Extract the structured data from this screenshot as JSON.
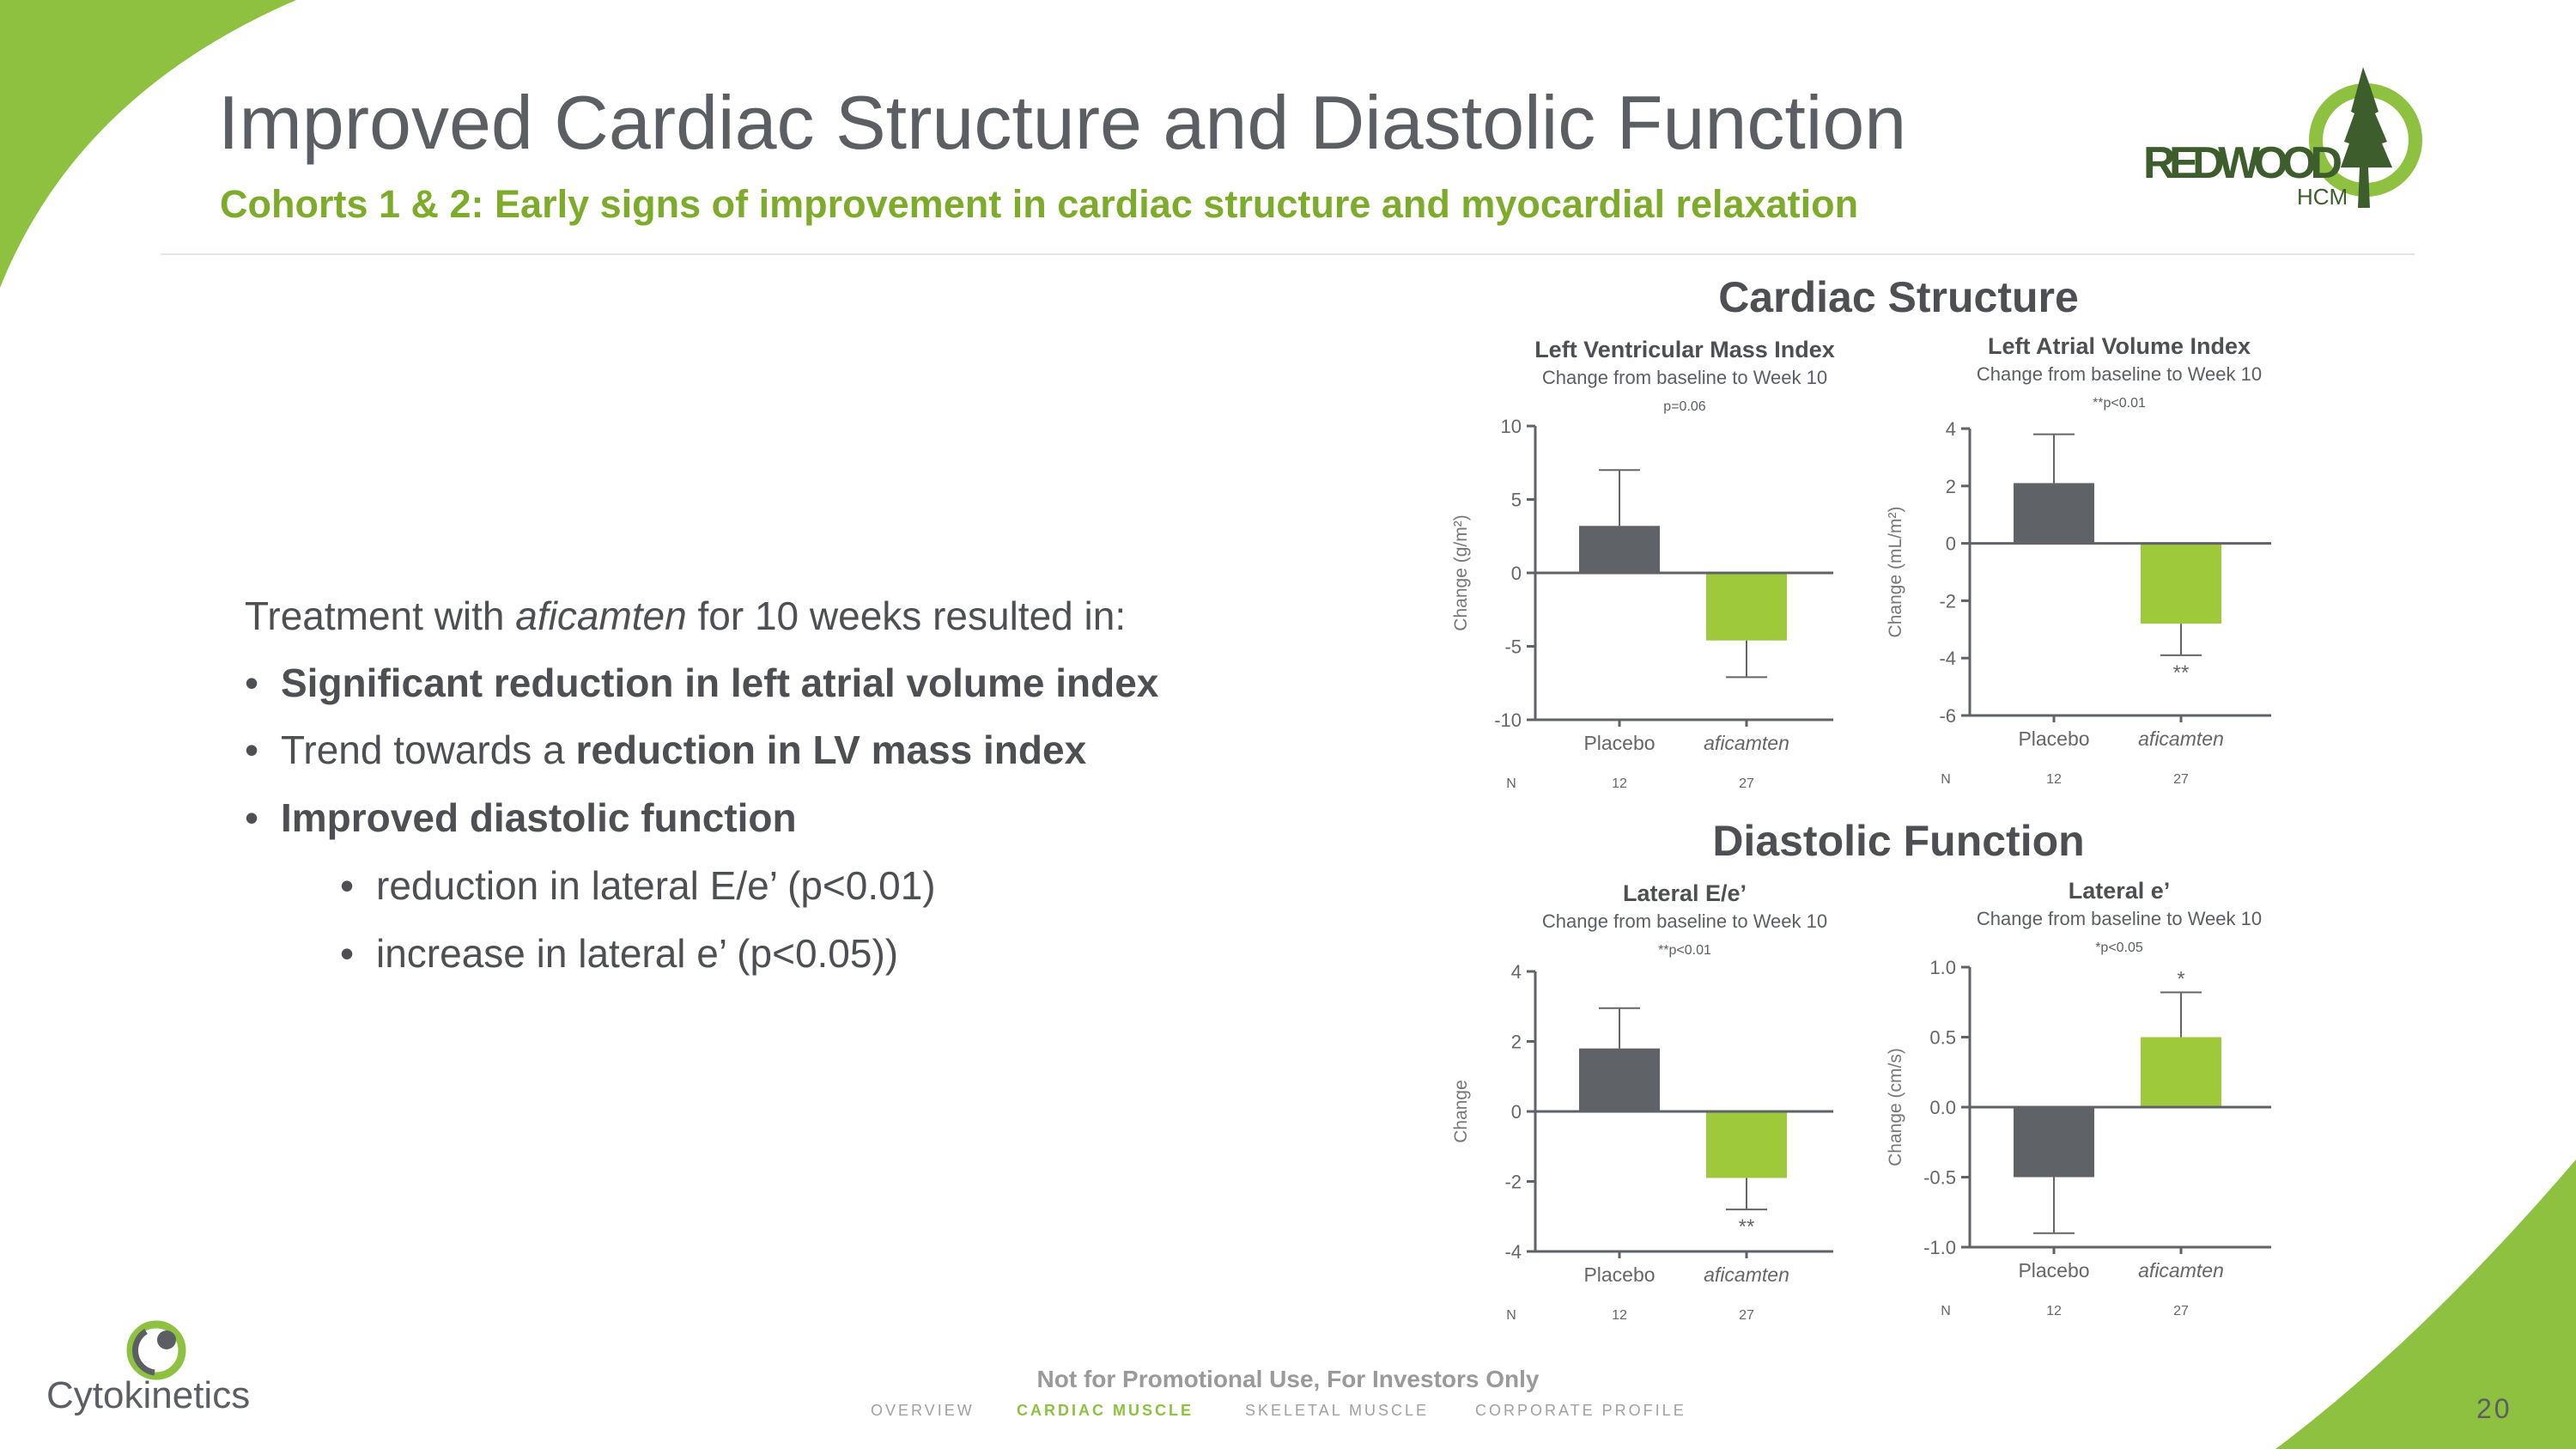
{
  "header": {
    "title": "Improved Cardiac Structure and Diastolic Function",
    "subtitle": "Cohorts 1 & 2: Early signs of improvement in cardiac structure and myocardial relaxation"
  },
  "logos": {
    "redwood": {
      "word": "REDWOOD",
      "sub": "HCM"
    },
    "cytokinetics": "Cytokinetics"
  },
  "body": {
    "intro_pre": "Treatment with ",
    "intro_drug": "aficamten",
    "intro_post": " for 10 weeks resulted in:",
    "bullets": [
      {
        "pre": "",
        "bold": "Significant reduction in left atrial volume index"
      },
      {
        "pre": "Trend towards a ",
        "bold": "reduction in LV mass index"
      },
      {
        "pre": "",
        "bold": "Improved diastolic function"
      }
    ],
    "sub_bullets": [
      "reduction in lateral E/e’ (p<0.01)",
      "increase in lateral e’ (p<0.05))"
    ]
  },
  "sections": {
    "structure": "Cardiac Structure",
    "diastolic": "Diastolic Function"
  },
  "colors": {
    "placebo": "#5f6368",
    "aficamten": "#9ec93a",
    "accent": "#7dab2a",
    "axis": "#5f6368"
  },
  "chart_data": [
    {
      "type": "bar",
      "title": "Left Ventricular Mass Index",
      "subtitle": "Change from baseline to Week 10",
      "pvalue": "p=0.06",
      "ylabel": "Change (g/m²)",
      "ylim": [
        -10,
        10
      ],
      "yticks": [
        "10",
        "5",
        "0",
        "-5",
        "-10"
      ],
      "ytick_values": [
        10,
        5,
        0,
        -5,
        -10
      ],
      "categories": [
        "Placebo",
        "aficamten"
      ],
      "values": [
        3.2,
        -4.6
      ],
      "error_end": [
        7.0,
        -7.1
      ],
      "markers": [
        "",
        ""
      ],
      "n_label": "N",
      "n": [
        "12",
        "27"
      ]
    },
    {
      "type": "bar",
      "title": "Left Atrial Volume Index",
      "subtitle": "Change from baseline to Week 10",
      "pvalue": "**p<0.01",
      "ylabel": "Change (mL/m²)",
      "ylim": [
        -6,
        4
      ],
      "yticks": [
        "4",
        "2",
        "0",
        "-2",
        "-4",
        "-6"
      ],
      "ytick_values": [
        4,
        2,
        0,
        -2,
        -4,
        -6
      ],
      "categories": [
        "Placebo",
        "aficamten"
      ],
      "values": [
        2.1,
        -2.8
      ],
      "error_end": [
        3.8,
        -3.9
      ],
      "markers": [
        "",
        "**"
      ],
      "n_label": "N",
      "n": [
        "12",
        "27"
      ]
    },
    {
      "type": "bar",
      "title": "Lateral E/e’",
      "subtitle": "Change from baseline to Week 10",
      "pvalue": "**p<0.01",
      "ylabel": "Change",
      "ylim": [
        -4,
        4
      ],
      "yticks": [
        "4",
        "2",
        "0",
        "-2",
        "-4"
      ],
      "ytick_values": [
        4,
        2,
        0,
        -2,
        -4
      ],
      "categories": [
        "Placebo",
        "aficamten"
      ],
      "values": [
        1.8,
        -1.9
      ],
      "error_end": [
        2.95,
        -2.8
      ],
      "markers": [
        "",
        "**"
      ],
      "n_label": "N",
      "n": [
        "12",
        "27"
      ]
    },
    {
      "type": "bar",
      "title": "Lateral e’",
      "subtitle": "Change from baseline to Week 10",
      "pvalue": "*p<0.05",
      "ylabel": "Change (cm/s)",
      "ylim": [
        -1.0,
        1.0
      ],
      "yticks": [
        "1.0",
        "0.5",
        "0.0",
        "-0.5",
        "-1.0"
      ],
      "ytick_values": [
        1.0,
        0.5,
        0.0,
        -0.5,
        -1.0
      ],
      "categories": [
        "Placebo",
        "aficamten"
      ],
      "values": [
        -0.5,
        0.5
      ],
      "error_end": [
        -0.9,
        0.82
      ],
      "markers": [
        "",
        "*"
      ],
      "n_label": "N",
      "n": [
        "12",
        "27"
      ]
    }
  ],
  "footer": {
    "note": "Not for Promotional Use, For Investors Only",
    "nav": [
      "OVERVIEW",
      "CARDIAC MUSCLE",
      "SKELETAL MUSCLE",
      "CORPORATE PROFILE"
    ],
    "active_nav": "CARDIAC MUSCLE",
    "page_number": "20"
  }
}
